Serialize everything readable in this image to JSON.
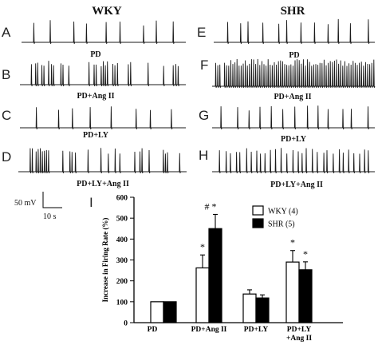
{
  "figure": {
    "groups": [
      {
        "header": "WKY",
        "panels": [
          {
            "letter": "A",
            "label": "PD"
          },
          {
            "letter": "B",
            "label": "PD+Ang II"
          },
          {
            "letter": "C",
            "label": "PD+LY"
          },
          {
            "letter": "D",
            "label": "PD+LY+Ang II"
          }
        ]
      },
      {
        "header": "SHR",
        "panels": [
          {
            "letter": "E",
            "label": "PD"
          },
          {
            "letter": "F",
            "label": "PD+Ang II"
          },
          {
            "letter": "G",
            "label": "PD+LY"
          },
          {
            "letter": "H",
            "label": "PD+LY+Ang II"
          }
        ]
      }
    ],
    "scale_bar": {
      "voltage": "50 mV",
      "time": "10 s"
    },
    "panel_i_letter": "I"
  },
  "chart_data": {
    "type": "bar",
    "categories": [
      "PD",
      "PD+Ang II",
      "PD+LY",
      "PD+LY\n+Ang II"
    ],
    "ylabel": "Increase in Firing Rate (%)",
    "xlabel": "",
    "ylim": [
      0,
      600
    ],
    "yticks": [
      0,
      100,
      200,
      300,
      400,
      500,
      600
    ],
    "legend_position": "top-right",
    "series": [
      {
        "name": "WKY (4)",
        "fill": "#ffffff",
        "values": [
          100,
          262,
          137,
          290
        ],
        "errors": [
          0,
          62,
          20,
          55
        ],
        "annotations": [
          "",
          "*",
          "",
          "*"
        ]
      },
      {
        "name": "SHR (5)",
        "fill": "#000000",
        "values": [
          100,
          450,
          118,
          253
        ],
        "errors": [
          0,
          68,
          15,
          38
        ],
        "annotations": [
          "",
          "# *",
          "",
          "*"
        ]
      }
    ]
  }
}
